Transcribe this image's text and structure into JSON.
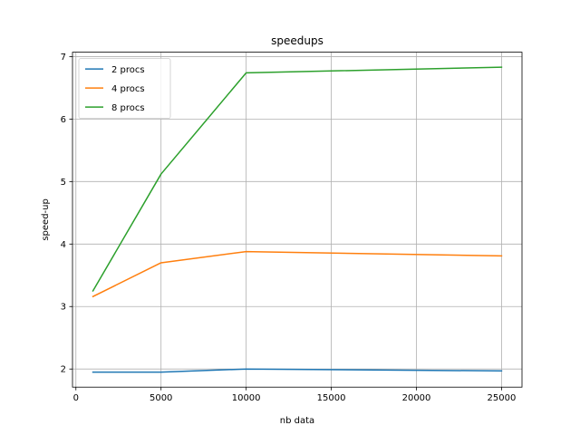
{
  "chart_data": {
    "type": "line",
    "title": "speedups",
    "xlabel": "nb data",
    "ylabel": "speed-up",
    "x": [
      1000,
      5000,
      10000,
      25000
    ],
    "series": [
      {
        "name": "2 procs",
        "color": "#1f77b4",
        "values": [
          1.95,
          1.95,
          2.0,
          1.97
        ]
      },
      {
        "name": "4 procs",
        "color": "#ff7f0e",
        "values": [
          3.16,
          3.7,
          3.88,
          3.81
        ]
      },
      {
        "name": "8 procs",
        "color": "#2ca02c",
        "values": [
          3.25,
          5.12,
          6.74,
          6.83
        ]
      }
    ],
    "xlim": [
      -200,
      26200
    ],
    "ylim": [
      1.71,
      7.07
    ],
    "xticks": [
      0,
      5000,
      10000,
      15000,
      20000,
      25000
    ],
    "yticks": [
      2,
      3,
      4,
      5,
      6,
      7
    ],
    "grid": true,
    "legend": "upper-left"
  }
}
